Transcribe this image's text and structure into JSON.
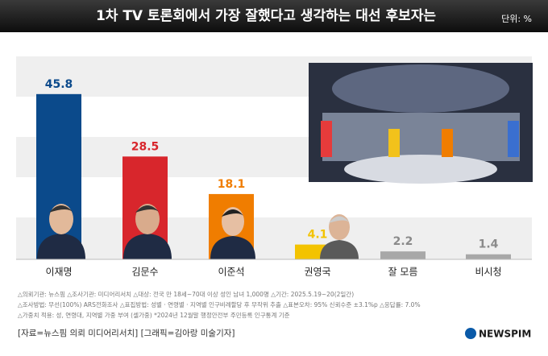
{
  "chart_data": {
    "type": "bar",
    "title": "1차 TV 토론회에서 가장 잘했다고 생각하는 대선 후보자는",
    "unit": "단위: %",
    "categories": [
      "이재명",
      "김문수",
      "이준석",
      "권영국",
      "잘 모름",
      "비시청"
    ],
    "values": [
      45.8,
      28.5,
      18.1,
      4.1,
      2.2,
      1.4
    ],
    "colors": [
      "#0b4a8b",
      "#d8262c",
      "#f07d00",
      "#f3c300",
      "#a8a8a8",
      "#a8a8a8"
    ],
    "label_colors": [
      "#0b4a8b",
      "#d8262c",
      "#f07d00",
      "#f3c300",
      "#8a8a8a",
      "#8a8a8a"
    ],
    "ylim": [
      0,
      50
    ],
    "notes": [
      "△의뢰기관: 뉴스핌 △조사기관: 미디어리서치 △대상: 전국 만 18세~70대 이상 성인 남녀 1,000명 △기간: 2025.5.19~20(2일간)",
      "△조사방법: 무선(100%) ARS전화조사 △표집방법: 성별 · 연령별 · 지역별 인구비례할당 후 무작위 추출 △표본오차: 95% 신뢰수준 ±3.1%p △응답률: 7.0%",
      "△가중치 적용: 성, 연령대, 지역별 가중 부여 (셀가중) *2024년 12월말 행정안전부 주민등록 인구통계 기준"
    ],
    "source": "[자료=뉴스핌 의뢰 미디어리서치] [그래픽=김아랑 미술기자]",
    "logo": "NEWSPIM"
  }
}
